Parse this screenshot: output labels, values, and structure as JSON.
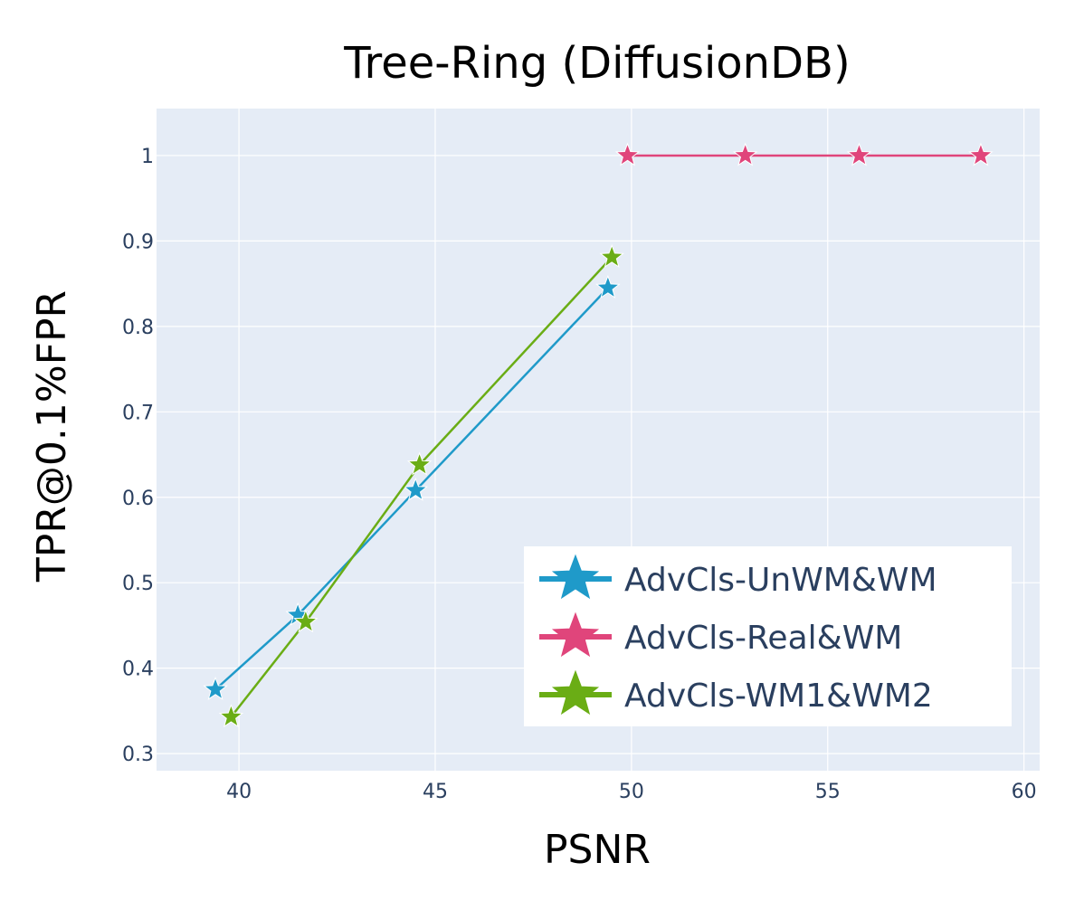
{
  "chart_data": {
    "type": "line",
    "title": "Tree-Ring (DiffusionDB)",
    "xlabel": "PSNR",
    "ylabel": "TPR@0.1%FPR",
    "xlim": [
      37.9,
      60.4
    ],
    "ylim": [
      0.28,
      1.055
    ],
    "x_ticks": [
      40,
      45,
      50,
      55,
      60
    ],
    "y_ticks": [
      0.3,
      0.4,
      0.5,
      0.6,
      0.7,
      0.8,
      0.9,
      1
    ],
    "x_tick_labels": [
      "40",
      "45",
      "50",
      "55",
      "60"
    ],
    "y_tick_labels": [
      "0.3",
      "0.4",
      "0.5",
      "0.6",
      "0.7",
      "0.8",
      "0.9",
      "1"
    ],
    "grid": true,
    "legend_position": "bottom-right",
    "plot_background": "#e5ecf6",
    "grid_color": "#ffffff",
    "marker": "star",
    "series": [
      {
        "name": "AdvCls-UnWM&WM",
        "color": "#1f9ac9",
        "x": [
          39.4,
          41.5,
          44.5,
          49.4
        ],
        "y": [
          0.375,
          0.462,
          0.608,
          0.845
        ]
      },
      {
        "name": "AdvCls-Real&WM",
        "color": "#e0457b",
        "x": [
          49.9,
          52.9,
          55.8,
          58.9
        ],
        "y": [
          1.0,
          1.0,
          1.0,
          1.0
        ]
      },
      {
        "name": "AdvCls-WM1&WM2",
        "color": "#6aad15",
        "x": [
          39.8,
          41.7,
          44.6,
          49.5
        ],
        "y": [
          0.343,
          0.454,
          0.638,
          0.881
        ]
      }
    ]
  }
}
